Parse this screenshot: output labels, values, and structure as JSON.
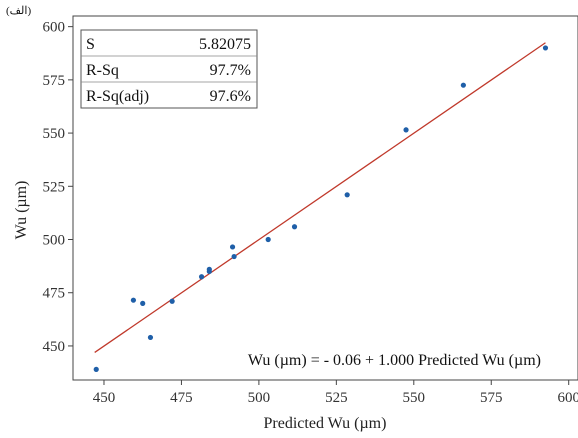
{
  "corner_label": "(الف)",
  "chart_data": {
    "type": "scatter",
    "xlabel": "Predicted Wu (µm)",
    "ylabel": "Wu (µm)",
    "xlim": [
      440,
      603
    ],
    "ylim": [
      434,
      605
    ],
    "xticks": [
      450,
      475,
      500,
      525,
      550,
      575,
      600
    ],
    "yticks": [
      450,
      475,
      500,
      525,
      550,
      575,
      600
    ],
    "grid": false,
    "points": [
      {
        "x": 447.5,
        "y": 439
      },
      {
        "x": 459.5,
        "y": 471.5
      },
      {
        "x": 462.5,
        "y": 470
      },
      {
        "x": 465,
        "y": 454
      },
      {
        "x": 472,
        "y": 471
      },
      {
        "x": 481.5,
        "y": 482.5
      },
      {
        "x": 484,
        "y": 485
      },
      {
        "x": 484,
        "y": 486
      },
      {
        "x": 491.5,
        "y": 496.5
      },
      {
        "x": 492,
        "y": 492
      },
      {
        "x": 503,
        "y": 500
      },
      {
        "x": 511.5,
        "y": 506
      },
      {
        "x": 528.5,
        "y": 521
      },
      {
        "x": 547.5,
        "y": 551.5
      },
      {
        "x": 566,
        "y": 572.5
      },
      {
        "x": 592.5,
        "y": 590
      }
    ],
    "fit_line": {
      "intercept": -0.06,
      "slope": 1.0,
      "x_range": [
        447,
        592.5
      ],
      "color": "#c0392b"
    },
    "point_color": "#1f5fa8",
    "stats": [
      {
        "label": "S",
        "value": "5.82075"
      },
      {
        "label": "R-Sq",
        "value": "97.7%"
      },
      {
        "label": "R-Sq(adj)",
        "value": "97.6%"
      }
    ],
    "equation": "Wu (µm) = - 0.06 + 1.000 Predicted Wu (µm)"
  }
}
